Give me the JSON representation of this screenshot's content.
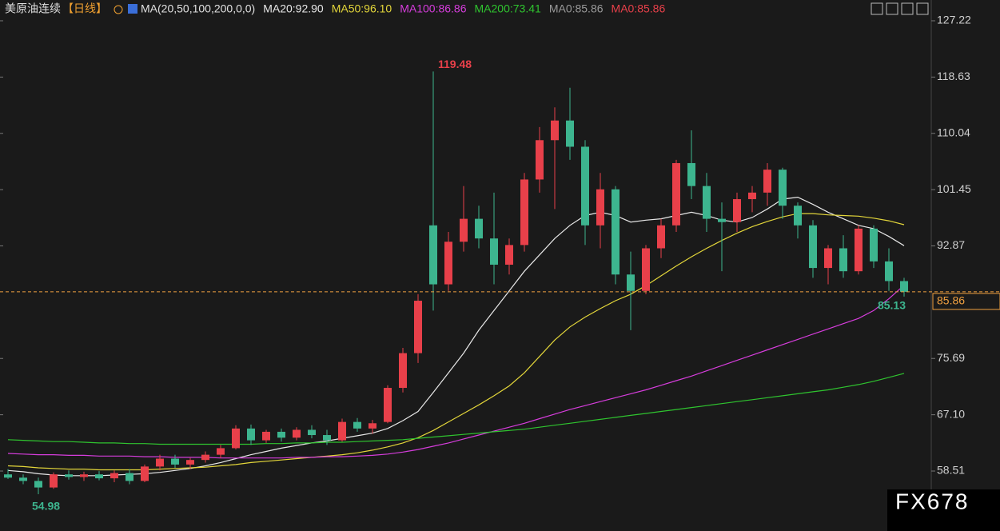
{
  "chart_data": {
    "type": "candlestick",
    "title": "美原油连续",
    "period": "【日线】",
    "indicator": "MA(20,50,100,200,0,0)",
    "up_color": "#e8404a",
    "down_color": "#3db58f",
    "ylim": [
      49.36,
      130.39
    ],
    "yticks": [
      58.51,
      {
        "value": 67.1,
        "label": "67.10"
      },
      75.69,
      92.87,
      101.45,
      110.04,
      118.63,
      127.22
    ],
    "grid": false,
    "open": [
      58,
      57.5,
      57,
      56,
      58,
      57.6,
      58,
      57.4,
      58.2,
      57,
      59.2,
      60.4,
      59.5,
      60.2,
      61,
      62,
      65,
      63.2,
      64.5,
      63.6,
      64.8,
      64,
      63.2,
      66,
      65,
      66,
      71.2,
      76.5,
      96,
      87,
      93.5,
      97,
      94,
      90,
      93,
      103,
      109,
      112,
      108,
      96,
      101.5,
      88.5,
      86,
      92.5,
      96,
      105.5,
      102,
      97,
      96.5,
      100,
      101,
      104.5,
      99,
      96,
      89.5,
      92.5,
      89,
      95.5,
      90.5,
      87.5
    ],
    "high": [
      58.8,
      58,
      57.5,
      58.3,
      58.6,
      58.4,
      58.5,
      58.6,
      58.8,
      59.5,
      61,
      61,
      60.5,
      61.5,
      62.5,
      65.5,
      65.6,
      64.8,
      65,
      65.2,
      65.5,
      64.8,
      66.5,
      66.6,
      66.3,
      71.6,
      77.3,
      85.5,
      119.48,
      95,
      102,
      99,
      101,
      94,
      104,
      111,
      114,
      117,
      109,
      104,
      102,
      92,
      93,
      97,
      106,
      110.5,
      104,
      99.5,
      101,
      102,
      105.5,
      104.8,
      99.5,
      96.8,
      93,
      94.5,
      96,
      96,
      92.5,
      88
    ],
    "low": [
      57.3,
      56.5,
      54.98,
      55.8,
      57.2,
      57,
      57.1,
      56.8,
      56.5,
      56.8,
      58.6,
      59,
      58.8,
      59.8,
      60.5,
      61.8,
      62.5,
      62.8,
      63,
      63.2,
      63.5,
      62.5,
      63,
      64.5,
      64.2,
      65.8,
      70.5,
      75,
      83,
      86,
      92,
      92.5,
      87,
      88.5,
      92,
      101,
      98.5,
      106,
      93,
      92.5,
      87,
      80,
      85.5,
      91,
      95,
      100,
      95,
      89,
      95,
      98,
      99,
      97,
      94,
      88,
      87,
      88,
      88.5,
      89.5,
      86,
      85.13
    ],
    "close": [
      57.5,
      57,
      56,
      58,
      57.6,
      58,
      57.4,
      58.2,
      57,
      59.2,
      60.4,
      59.5,
      60.2,
      61,
      62,
      65,
      63.2,
      64.5,
      63.6,
      64.8,
      64,
      63.2,
      66,
      65,
      65.8,
      71.2,
      76.5,
      84.5,
      87,
      93.5,
      97,
      94,
      90,
      93,
      103,
      109,
      112,
      108,
      96,
      101.5,
      88.5,
      86,
      92.5,
      96,
      105.5,
      102,
      97,
      96.5,
      100,
      101,
      104.5,
      99,
      96,
      89.5,
      92.5,
      89,
      95.5,
      90.5,
      87.5,
      85.86
    ],
    "series": [
      {
        "name": "MA20:92.90",
        "color": "#e8e8e8",
        "values": [
          58.6,
          58.4,
          58.1,
          57.9,
          57.8,
          57.8,
          57.8,
          57.9,
          58,
          58.1,
          58.3,
          58.6,
          58.9,
          59.3,
          59.8,
          60.4,
          61,
          61.5,
          62,
          62.4,
          62.8,
          63.1,
          63.5,
          63.9,
          64.3,
          65,
          66.2,
          67.6,
          70.5,
          73.5,
          76.5,
          80,
          83,
          86,
          89,
          91.5,
          94,
          96,
          97.5,
          98,
          97.5,
          96.5,
          96.8,
          97,
          97.5,
          98,
          97.5,
          96.8,
          96.5,
          97.2,
          98.5,
          100,
          100.3,
          99.2,
          98,
          97,
          96,
          95.5,
          94.3,
          92.9
        ]
      },
      {
        "name": "MA50:96.10",
        "color": "#e3d63a",
        "values": [
          59.3,
          59.2,
          59,
          58.9,
          58.8,
          58.8,
          58.7,
          58.7,
          58.7,
          58.7,
          58.8,
          58.9,
          59,
          59.1,
          59.3,
          59.5,
          59.8,
          60,
          60.2,
          60.4,
          60.6,
          60.8,
          61,
          61.3,
          61.7,
          62.2,
          62.8,
          63.6,
          64.7,
          66,
          67.3,
          68.6,
          70,
          71.5,
          73.5,
          76,
          78.5,
          80.5,
          82,
          83.3,
          84.5,
          85.5,
          86.8,
          88.3,
          89.8,
          91.2,
          92.5,
          93.7,
          94.8,
          95.8,
          96.6,
          97.3,
          97.8,
          97.8,
          97.6,
          97.5,
          97.4,
          97.1,
          96.7,
          96.1
        ]
      },
      {
        "name": "MA100:86.86",
        "color": "#d63ddc",
        "values": [
          61.2,
          61.1,
          61,
          61,
          60.9,
          60.9,
          60.8,
          60.8,
          60.8,
          60.7,
          60.7,
          60.6,
          60.6,
          60.6,
          60.5,
          60.5,
          60.5,
          60.5,
          60.5,
          60.6,
          60.6,
          60.7,
          60.7,
          60.8,
          60.9,
          61.1,
          61.4,
          61.8,
          62.3,
          62.8,
          63.4,
          64,
          64.6,
          65.2,
          65.8,
          66.5,
          67.2,
          67.9,
          68.5,
          69.1,
          69.7,
          70.3,
          70.9,
          71.6,
          72.3,
          73,
          73.8,
          74.6,
          75.4,
          76.2,
          77,
          77.8,
          78.6,
          79.4,
          80.2,
          81,
          81.8,
          83,
          84.8,
          86.86
        ]
      },
      {
        "name": "MA200:73.41",
        "color": "#2fc42f",
        "values": [
          63.3,
          63.2,
          63.1,
          63,
          63,
          62.9,
          62.8,
          62.8,
          62.7,
          62.7,
          62.6,
          62.6,
          62.6,
          62.6,
          62.6,
          62.6,
          62.6,
          62.7,
          62.7,
          62.8,
          62.8,
          62.9,
          62.9,
          63,
          63.1,
          63.2,
          63.3,
          63.5,
          63.7,
          63.9,
          64.1,
          64.3,
          64.5,
          64.7,
          64.9,
          65.2,
          65.5,
          65.8,
          66.1,
          66.4,
          66.7,
          67,
          67.3,
          67.6,
          67.9,
          68.2,
          68.5,
          68.8,
          69.1,
          69.4,
          69.7,
          70,
          70.3,
          70.6,
          70.9,
          71.3,
          71.7,
          72.2,
          72.8,
          73.41
        ]
      }
    ],
    "header_extra": [
      {
        "text": "MA0:85.86",
        "color": "#9a9a9a"
      },
      {
        "text": "MA0:85.86",
        "color": "#e8404a"
      }
    ],
    "last_price": 85.86,
    "last_price_color": "#f0a040",
    "high_label": 119.48,
    "low_label": 54.98,
    "last_low_label": 85.13,
    "watermark": "FX678"
  }
}
